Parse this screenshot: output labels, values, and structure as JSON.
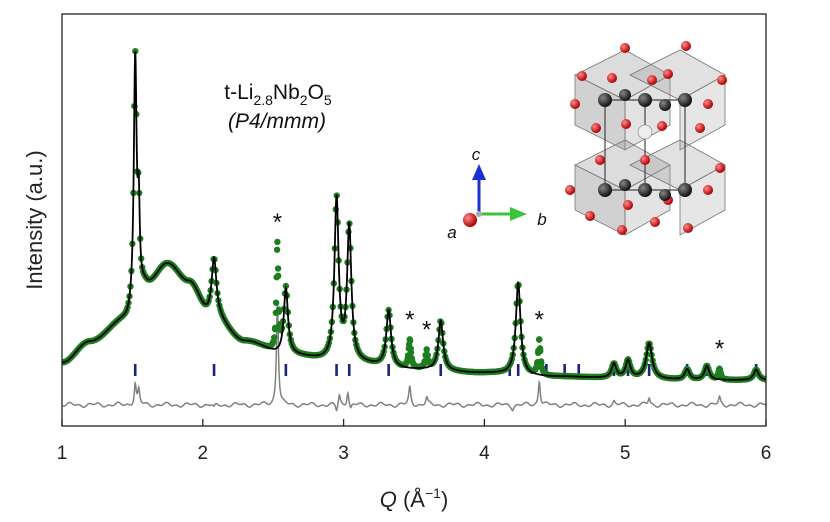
{
  "chart_data": {
    "type": "line",
    "xlabel": "Q (Å⁻¹)",
    "xlabel_parts": {
      "q": "Q",
      "open": " (Å",
      "sup": "−1",
      "close": ")"
    },
    "ylabel": "Intensity (a.u.)",
    "xlim": [
      1,
      6
    ],
    "ylim": [
      -0.12,
      1.05
    ],
    "x_ticks": [
      1,
      2,
      3,
      4,
      5,
      6
    ],
    "y_ticks_shown": false,
    "grid": false,
    "annotation": {
      "formula_parts": [
        {
          "t": "t-Li"
        },
        {
          "sub": "2.8"
        },
        {
          "t": "Nb"
        },
        {
          "sub": "2"
        },
        {
          "t": "O"
        },
        {
          "sub": "5"
        }
      ],
      "space_group": "(P4/mmm)"
    },
    "inset_axes": {
      "c": "c",
      "a": "a",
      "b": "b"
    },
    "impurity_marker": "*",
    "impurity_peaks": [
      2.53,
      3.47,
      3.59,
      4.39,
      5.67
    ],
    "series": [
      {
        "role": "observed",
        "color": "#1e7d1e",
        "marker": "circle",
        "background": [
          [
            1.0,
            0.06
          ],
          [
            1.2,
            0.12
          ],
          [
            1.45,
            0.18
          ],
          [
            1.6,
            0.28
          ],
          [
            1.75,
            0.34
          ],
          [
            1.9,
            0.29
          ],
          [
            2.05,
            0.2
          ],
          [
            2.3,
            0.12
          ],
          [
            2.6,
            0.08
          ],
          [
            3.0,
            0.06
          ],
          [
            3.5,
            0.04
          ],
          [
            4.0,
            0.03
          ],
          [
            4.5,
            0.02
          ],
          [
            5.0,
            0.015
          ],
          [
            5.5,
            0.01
          ],
          [
            6.0,
            0.01
          ]
        ],
        "peaks": [
          {
            "x": 1.52,
            "h": 0.7,
            "w": 0.012
          },
          {
            "x": 1.545,
            "h": 0.22,
            "w": 0.008
          },
          {
            "x": 2.08,
            "h": 0.16,
            "w": 0.02
          },
          {
            "x": 2.59,
            "h": 0.19,
            "w": 0.018
          },
          {
            "x": 2.95,
            "h": 0.46,
            "w": 0.018
          },
          {
            "x": 3.04,
            "h": 0.38,
            "w": 0.018
          },
          {
            "x": 3.32,
            "h": 0.16,
            "w": 0.02
          },
          {
            "x": 3.69,
            "h": 0.14,
            "w": 0.02
          },
          {
            "x": 4.24,
            "h": 0.26,
            "w": 0.02
          },
          {
            "x": 4.92,
            "h": 0.04,
            "w": 0.02
          },
          {
            "x": 5.02,
            "h": 0.05,
            "w": 0.02
          },
          {
            "x": 5.17,
            "h": 0.1,
            "w": 0.025
          },
          {
            "x": 5.44,
            "h": 0.03,
            "w": 0.02
          },
          {
            "x": 5.58,
            "h": 0.04,
            "w": 0.02
          },
          {
            "x": 5.93,
            "h": 0.03,
            "w": 0.02
          }
        ],
        "extra_peaks": [
          {
            "x": 2.53,
            "h": 0.3,
            "w": 0.008
          },
          {
            "x": 3.47,
            "h": 0.08,
            "w": 0.01
          },
          {
            "x": 3.59,
            "h": 0.05,
            "w": 0.01
          },
          {
            "x": 4.39,
            "h": 0.1,
            "w": 0.01
          },
          {
            "x": 5.67,
            "h": 0.03,
            "w": 0.01
          }
        ]
      },
      {
        "role": "calculated",
        "color": "#000000",
        "line": "solid"
      },
      {
        "role": "bragg_positions",
        "color": "#1a237e",
        "values": [
          1.52,
          2.08,
          2.59,
          2.95,
          3.04,
          3.32,
          3.69,
          4.18,
          4.24,
          4.44,
          4.57,
          4.67,
          4.92,
          5.02,
          5.17,
          5.44,
          5.58,
          5.93
        ]
      },
      {
        "role": "difference",
        "color": "#808080",
        "baseline": -0.06,
        "spikes": [
          {
            "x": 1.52,
            "h": 0.06
          },
          {
            "x": 1.545,
            "h": 0.04
          },
          {
            "x": 2.08,
            "h": -0.01
          },
          {
            "x": 2.53,
            "h": 0.3
          },
          {
            "x": 2.95,
            "h": -0.02
          },
          {
            "x": 2.97,
            "h": 0.03
          },
          {
            "x": 3.03,
            "h": 0.04
          },
          {
            "x": 3.05,
            "h": -0.015
          },
          {
            "x": 3.47,
            "h": 0.05
          },
          {
            "x": 3.59,
            "h": 0.02
          },
          {
            "x": 4.2,
            "h": -0.01
          },
          {
            "x": 4.39,
            "h": 0.07
          },
          {
            "x": 4.92,
            "h": 0.01
          },
          {
            "x": 5.17,
            "h": 0.02
          },
          {
            "x": 5.67,
            "h": 0.02
          }
        ]
      }
    ]
  }
}
